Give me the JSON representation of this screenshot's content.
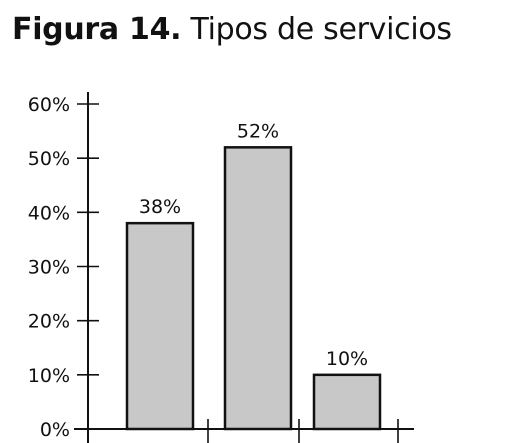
{
  "figure": {
    "prefix": "Figura 14.",
    "title": "Tipos de servicios"
  },
  "colors": {
    "bar_fill": "#c8c8c8",
    "bar_stroke": "#111111",
    "axis": "#111111",
    "text": "#111111"
  },
  "chart_data": {
    "type": "bar",
    "title": "Tipos de servicios",
    "categories": [
      "",
      "",
      ""
    ],
    "values": [
      38,
      52,
      10
    ],
    "data_labels": [
      "38%",
      "52%",
      "10%"
    ],
    "y_tick_values": [
      0,
      10,
      20,
      30,
      40,
      50,
      60
    ],
    "y_tick_labels": [
      "0%",
      "10%",
      "20%",
      "30%",
      "40%",
      "50%",
      "60%"
    ],
    "ylim": [
      0,
      60
    ],
    "xlabel": "",
    "ylabel": "",
    "grid": false,
    "legend": "none"
  }
}
